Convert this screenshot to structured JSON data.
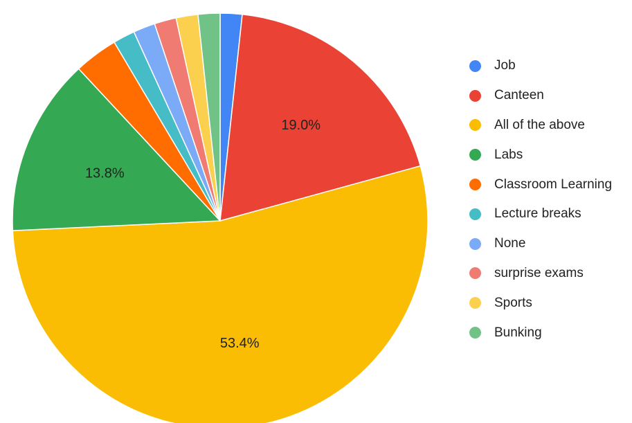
{
  "chart_data": {
    "type": "pie",
    "title": "",
    "legend_position": "right",
    "start_angle_deg": 0,
    "direction": "clockwise",
    "slices": [
      {
        "name": "Job",
        "value": 1.7,
        "color": "#4285F4",
        "label": ""
      },
      {
        "name": "Canteen",
        "value": 19.0,
        "color": "#EA4335",
        "label": "19.0%"
      },
      {
        "name": "All of the above",
        "value": 53.4,
        "color": "#FBBC04",
        "label": "53.4%"
      },
      {
        "name": "Labs",
        "value": 13.8,
        "color": "#34A853",
        "label": "13.8%"
      },
      {
        "name": "Classroom Learning",
        "value": 3.4,
        "color": "#FF6D01",
        "label": ""
      },
      {
        "name": "Lecture breaks",
        "value": 1.7,
        "color": "#46BDC6",
        "label": ""
      },
      {
        "name": "None",
        "value": 1.7,
        "color": "#7BAAF7",
        "label": ""
      },
      {
        "name": "surprise exams",
        "value": 1.7,
        "color": "#F07B72",
        "label": ""
      },
      {
        "name": "Sports",
        "value": 1.7,
        "color": "#FCD04F",
        "label": ""
      },
      {
        "name": "Bunking",
        "value": 1.7,
        "color": "#71C287",
        "label": ""
      }
    ]
  }
}
